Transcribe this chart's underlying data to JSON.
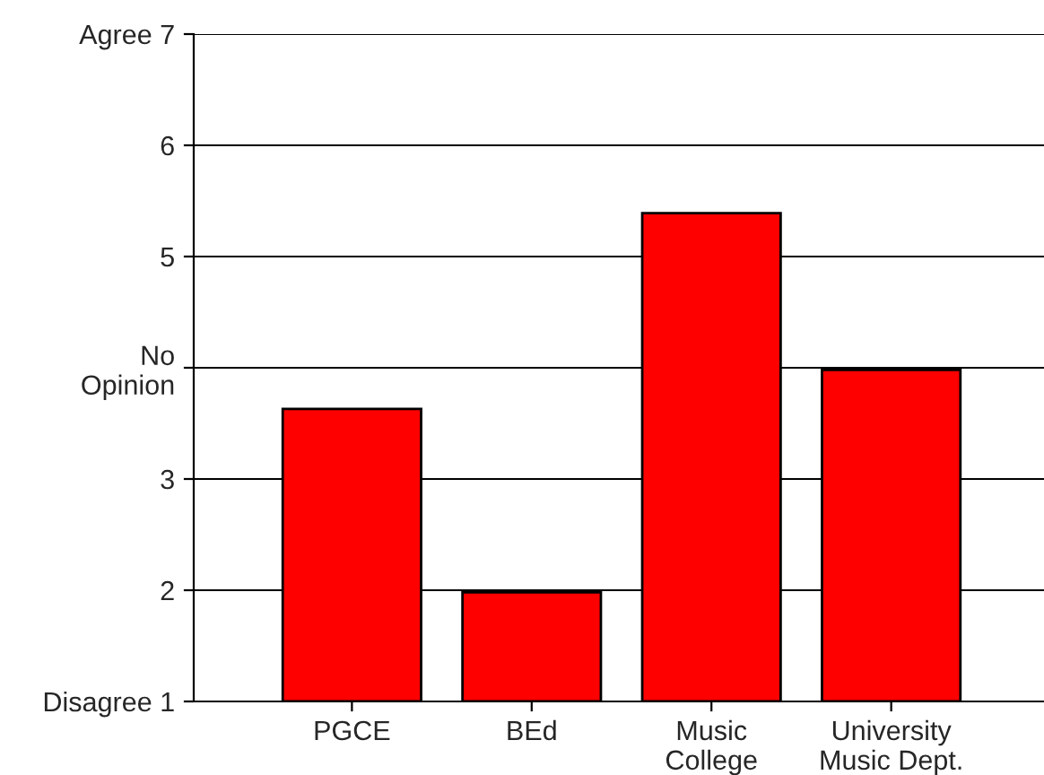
{
  "chart_data": {
    "type": "bar",
    "categories": [
      "PGCE",
      "BEd",
      "Music\nCollege",
      "University\nMusic Dept."
    ],
    "values": [
      3.63,
      1.98,
      5.39,
      3.98
    ],
    "color": "#ff0000",
    "ylim": [
      1,
      7
    ],
    "yticks": [
      {
        "value": 1,
        "label": "Disagree 1"
      },
      2,
      3,
      {
        "value": 4,
        "label": "No\nOpinion"
      },
      5,
      6,
      {
        "value": 7,
        "label": "Agree 7"
      }
    ],
    "grid": "y",
    "legend": false
  }
}
